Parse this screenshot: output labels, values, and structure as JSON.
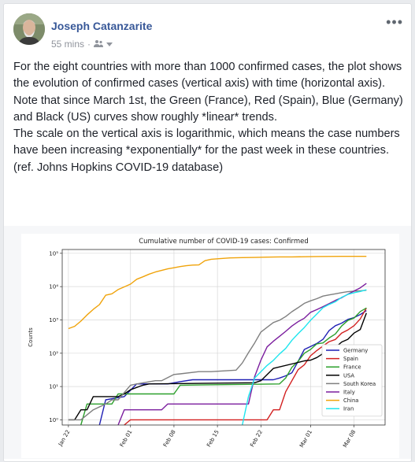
{
  "post": {
    "author": "Joseph Catanzarite",
    "time": "55 mins",
    "audience_icon": "friends-icon",
    "more_icon": "more-options-icon",
    "more_label": "•••",
    "text": "For the eight countries with more than 1000 confirmed cases, the plot shows the evolution of confirmed cases (vertical axis) with time (horizontal axis).\nNote that since March 1st, the Green (France), Red (Spain), Blue (Germany) and Black (US) curves show roughly *linear* trends.\nThe scale on the vertical axis is logarithmic, which means the case numbers have been increasing *exponentially* for the past week in these countries.\n(ref. Johns Hopkins COVID-19 database)"
  },
  "chart_data": {
    "type": "line",
    "title": "Cumulative number of COVID-19 cases: Confirmed",
    "ylabel": "Counts",
    "xlabel": "",
    "yscale": "log",
    "ylim": [
      0.7,
      130000
    ],
    "xlim": [
      -1,
      51
    ],
    "x_ticks": [
      {
        "day": 0,
        "label": "Jan 22"
      },
      {
        "day": 10,
        "label": "Feb 01"
      },
      {
        "day": 17,
        "label": "Feb 08"
      },
      {
        "day": 24,
        "label": "Feb 15"
      },
      {
        "day": 31,
        "label": "Feb 22"
      },
      {
        "day": 39,
        "label": "Mar 01"
      },
      {
        "day": 46,
        "label": "Mar 08"
      }
    ],
    "y_ticks": [
      {
        "value": 1,
        "label": "10⁰"
      },
      {
        "value": 10,
        "label": "10¹"
      },
      {
        "value": 100,
        "label": "10²"
      },
      {
        "value": 1000,
        "label": "10³"
      },
      {
        "value": 10000,
        "label": "10⁴"
      },
      {
        "value": 100000,
        "label": "10⁵"
      }
    ],
    "grid": true,
    "legend_position": "lower right",
    "series": [
      {
        "name": "Germany",
        "color": "#1f1fb4",
        "x": [
          5,
          6,
          9,
          11,
          16,
          18,
          20,
          21,
          31,
          32,
          33,
          34,
          35,
          36,
          37,
          38,
          39,
          40,
          41,
          42,
          43,
          44,
          45,
          46,
          47,
          48
        ],
        "y": [
          0.5,
          4,
          5,
          12,
          12,
          14,
          16,
          16,
          16,
          16,
          16,
          18,
          21,
          26,
          57,
          130,
          159,
          196,
          262,
          482,
          670,
          799,
          1040,
          1176,
          1457,
          1908
        ]
      },
      {
        "name": "Spain",
        "color": "#d21f1f",
        "x": [
          9,
          10,
          32,
          33,
          34,
          35,
          36,
          37,
          38,
          39,
          40,
          41,
          42,
          43,
          44,
          45,
          46,
          47,
          48
        ],
        "y": [
          0.5,
          1,
          1,
          2,
          2,
          7,
          15,
          32,
          45,
          84,
          120,
          165,
          222,
          259,
          400,
          500,
          673,
          1073,
          2277
        ]
      },
      {
        "name": "France",
        "color": "#2ca02c",
        "x": [
          2,
          3,
          7,
          8,
          17,
          18,
          34,
          35,
          36,
          37,
          38,
          39,
          40,
          41,
          42,
          43,
          44,
          45,
          46,
          47,
          48
        ],
        "y": [
          0.5,
          3,
          3,
          6,
          6,
          11,
          12,
          18,
          38,
          57,
          100,
          130,
          191,
          204,
          288,
          380,
          656,
          959,
          1136,
          1784,
          2281
        ]
      },
      {
        "name": "USA",
        "color": "#000000",
        "x": [
          0,
          1,
          2,
          3,
          4,
          5,
          8,
          9,
          10,
          12,
          13,
          30,
          31,
          33,
          37,
          38,
          39,
          40,
          41,
          42,
          43,
          44,
          45,
          46,
          47,
          48
        ],
        "y": [
          1,
          1,
          2,
          2,
          5,
          5,
          5,
          6,
          8,
          11,
          12,
          13,
          15,
          35,
          53,
          59,
          62,
          74,
          98,
          118,
          149,
          217,
          262,
          402,
          518,
          1600
        ]
      },
      {
        "name": "South Korea",
        "color": "#7f7f7f",
        "x": [
          0,
          2,
          4,
          6,
          7,
          8,
          10,
          11,
          14,
          15,
          17,
          18,
          21,
          23,
          27,
          28,
          29,
          30,
          31,
          32,
          33,
          34,
          35,
          36,
          37,
          38,
          39,
          40,
          41,
          42,
          43,
          44,
          45,
          46,
          47,
          48
        ],
        "y": [
          1,
          1,
          2,
          3,
          4,
          4,
          11,
          12,
          15,
          15,
          23,
          24,
          28,
          28,
          31,
          51,
          104,
          204,
          433,
          602,
          833,
          977,
          1261,
          1766,
          2337,
          3150,
          3736,
          4335,
          5186,
          5621,
          6088,
          6593,
          7041,
          7314,
          7478,
          7755
        ]
      },
      {
        "name": "Italy",
        "color": "#7b1e9e",
        "x": [
          8,
          9,
          15,
          16,
          29,
          30,
          31,
          32,
          33,
          34,
          35,
          36,
          37,
          38,
          39,
          40,
          41,
          42,
          43,
          44,
          45,
          46,
          47,
          48
        ],
        "y": [
          0.5,
          2,
          2,
          3,
          3,
          20,
          62,
          155,
          229,
          322,
          453,
          655,
          888,
          1128,
          1694,
          2036,
          2502,
          3089,
          3858,
          4636,
          5883,
          7375,
          9172,
          12462
        ]
      },
      {
        "name": "China",
        "color": "#f0a30a",
        "x": [
          0,
          1,
          2,
          3,
          4,
          5,
          6,
          7,
          8,
          9,
          10,
          11,
          12,
          13,
          14,
          15,
          16,
          17,
          18,
          19,
          20,
          21,
          22,
          23,
          24,
          26,
          28,
          30,
          32,
          34,
          36,
          38,
          40,
          42,
          44,
          46,
          48
        ],
        "y": [
          548,
          643,
          920,
          1406,
          2075,
          2877,
          5509,
          6087,
          8141,
          9802,
          11891,
          16630,
          19716,
          23707,
          27440,
          30587,
          34110,
          36814,
          39829,
          42354,
          44386,
          44759,
          59895,
          66358,
          68413,
          72528,
          74280,
          75077,
          76843,
          77750,
          78166,
          78961,
          80026,
          80551,
          80859,
          80894,
          80923
        ]
      },
      {
        "name": "Iran",
        "color": "#1ee5ee",
        "x": [
          28,
          29,
          30,
          31,
          32,
          33,
          34,
          35,
          36,
          37,
          38,
          39,
          40,
          41,
          42,
          43,
          44,
          45,
          46,
          47,
          48
        ],
        "y": [
          0.5,
          5,
          18,
          28,
          43,
          61,
          95,
          139,
          245,
          388,
          593,
          978,
          1501,
          2336,
          2922,
          3513,
          4747,
          5823,
          6566,
          7161,
          8042
        ]
      }
    ]
  }
}
